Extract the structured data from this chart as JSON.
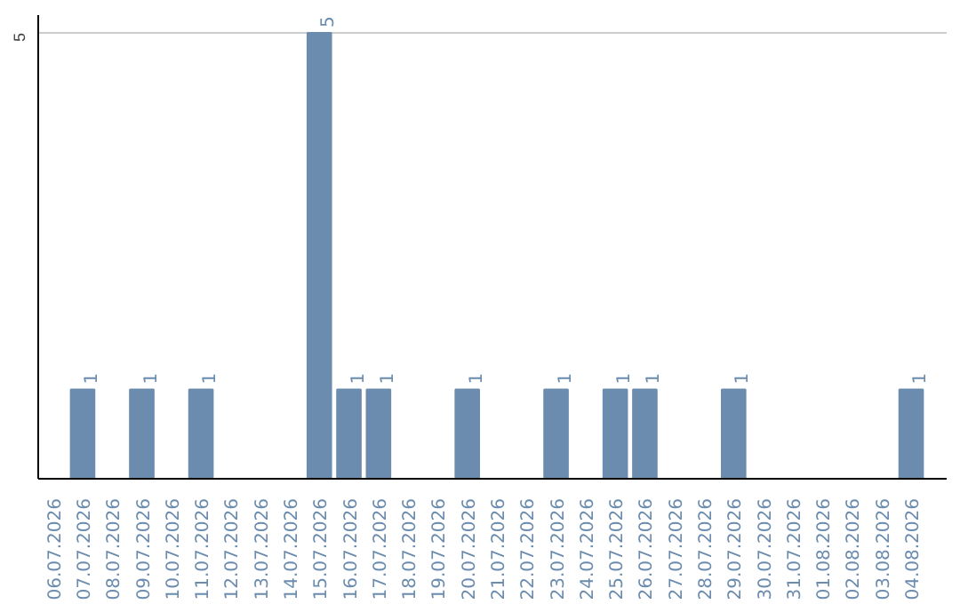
{
  "chart_data": {
    "type": "bar",
    "categories": [
      "06.07.2026",
      "07.07.2026",
      "08.07.2026",
      "09.07.2026",
      "10.07.2026",
      "11.07.2026",
      "12.07.2026",
      "13.07.2026",
      "14.07.2026",
      "15.07.2026",
      "16.07.2026",
      "17.07.2026",
      "18.07.2026",
      "19.07.2026",
      "20.07.2026",
      "21.07.2026",
      "22.07.2026",
      "23.07.2026",
      "24.07.2026",
      "25.07.2026",
      "26.07.2026",
      "27.07.2026",
      "28.07.2026",
      "29.07.2026",
      "30.07.2026",
      "31.07.2026",
      "01.08.2026",
      "02.08.2026",
      "03.08.2026",
      "04.08.2026"
    ],
    "values": [
      0,
      1,
      0,
      1,
      0,
      1,
      0,
      0,
      0,
      5,
      1,
      1,
      0,
      0,
      1,
      0,
      0,
      1,
      0,
      1,
      1,
      0,
      0,
      1,
      0,
      0,
      0,
      0,
      0,
      1
    ],
    "value_labels": [
      null,
      "1",
      null,
      "1",
      null,
      "1",
      null,
      null,
      null,
      "5",
      "1",
      "1",
      null,
      null,
      "1",
      null,
      null,
      "1",
      null,
      "1",
      "1",
      null,
      null,
      "1",
      null,
      null,
      null,
      null,
      null,
      "1"
    ],
    "color": "#6b8cae",
    "ylim": [
      0,
      5.2
    ],
    "yticks": [
      5
    ],
    "grid": "y"
  }
}
